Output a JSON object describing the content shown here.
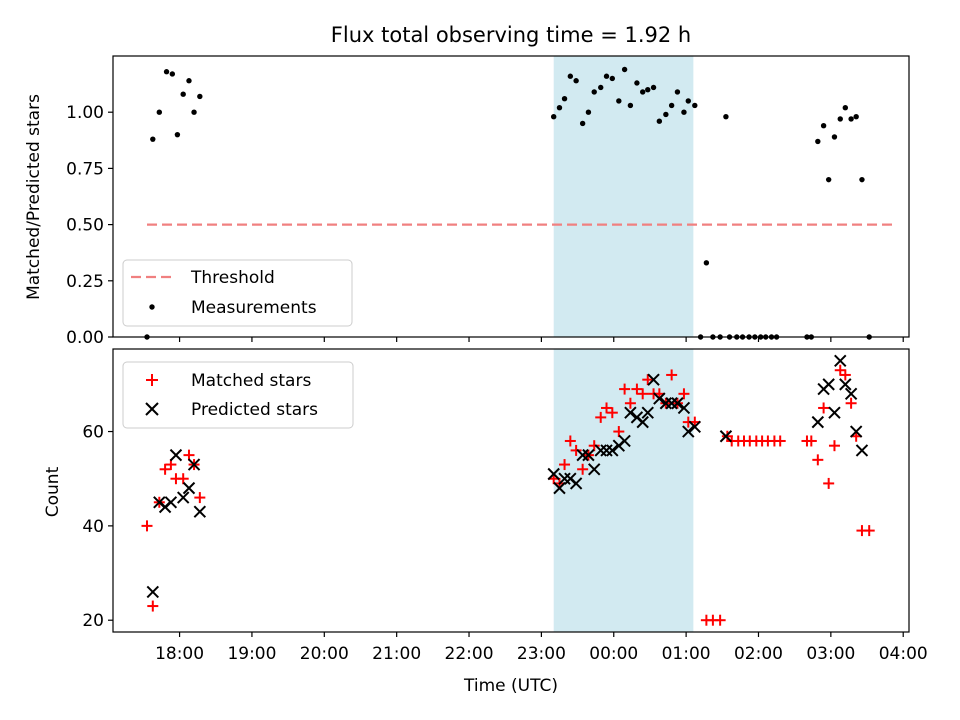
{
  "title": "Flux total observing time = 1.92 h",
  "colors": {
    "threshold": "#f08080",
    "measurements": "#000000",
    "matched": "#ff0000",
    "predicted": "#000000",
    "shade": "#add8e6"
  },
  "chart_data": [
    {
      "type": "scatter",
      "panel": "top",
      "ylabel": "Matched/Predicted stars",
      "xlabel": "",
      "ylim": [
        0.0,
        1.25
      ],
      "yticks": [
        0.0,
        0.25,
        0.5,
        0.75,
        1.0
      ],
      "ytick_labels": [
        "0.00",
        "0.25",
        "0.50",
        "0.75",
        "1.00"
      ],
      "xlim_hours": [
        17.08,
        28.08
      ],
      "shaded_span_hours": [
        23.17,
        25.1
      ],
      "legend_position": "lower-left",
      "threshold": {
        "name": "Threshold",
        "value": 0.5,
        "x_range_hours": [
          17.55,
          27.9
        ],
        "style": "dashed"
      },
      "series": [
        {
          "name": "Measurements",
          "marker": "dot",
          "points": [
            [
              17.55,
              0.0
            ],
            [
              17.63,
              0.88
            ],
            [
              17.72,
              1.0
            ],
            [
              17.82,
              1.18
            ],
            [
              17.9,
              1.17
            ],
            [
              17.97,
              0.9
            ],
            [
              18.05,
              1.08
            ],
            [
              18.13,
              1.14
            ],
            [
              18.2,
              1.0
            ],
            [
              18.28,
              1.07
            ],
            [
              23.17,
              0.98
            ],
            [
              23.25,
              1.02
            ],
            [
              23.32,
              1.06
            ],
            [
              23.4,
              1.16
            ],
            [
              23.48,
              1.14
            ],
            [
              23.57,
              0.95
            ],
            [
              23.65,
              1.0
            ],
            [
              23.73,
              1.09
            ],
            [
              23.82,
              1.11
            ],
            [
              23.9,
              1.16
            ],
            [
              23.98,
              1.15
            ],
            [
              24.07,
              1.05
            ],
            [
              24.15,
              1.19
            ],
            [
              24.23,
              1.03
            ],
            [
              24.32,
              1.13
            ],
            [
              24.4,
              1.09
            ],
            [
              24.47,
              1.1
            ],
            [
              24.55,
              1.11
            ],
            [
              24.63,
              0.96
            ],
            [
              24.72,
              0.99
            ],
            [
              24.8,
              1.03
            ],
            [
              24.88,
              1.09
            ],
            [
              24.97,
              1.0
            ],
            [
              25.03,
              1.05
            ],
            [
              25.12,
              1.03
            ],
            [
              25.2,
              0.0
            ],
            [
              25.28,
              0.33
            ],
            [
              25.37,
              0.0
            ],
            [
              25.47,
              0.0
            ],
            [
              25.55,
              0.98
            ],
            [
              25.6,
              0.0
            ],
            [
              25.7,
              0.0
            ],
            [
              25.78,
              0.0
            ],
            [
              25.87,
              0.0
            ],
            [
              25.95,
              0.0
            ],
            [
              26.03,
              0.0
            ],
            [
              26.1,
              0.0
            ],
            [
              26.18,
              0.0
            ],
            [
              26.25,
              0.0
            ],
            [
              26.67,
              0.0
            ],
            [
              26.73,
              0.0
            ],
            [
              26.82,
              0.87
            ],
            [
              26.9,
              0.94
            ],
            [
              26.97,
              0.7
            ],
            [
              27.05,
              0.89
            ],
            [
              27.13,
              0.97
            ],
            [
              27.2,
              1.02
            ],
            [
              27.28,
              0.97
            ],
            [
              27.35,
              0.98
            ],
            [
              27.43,
              0.7
            ],
            [
              27.53,
              0.0
            ]
          ]
        }
      ]
    },
    {
      "type": "scatter",
      "panel": "bottom",
      "xlabel": "Time (UTC)",
      "ylabel": "Count",
      "ylim": [
        17.5,
        77.5
      ],
      "yticks": [
        20,
        40,
        60
      ],
      "ytick_labels": [
        "20",
        "40",
        "60"
      ],
      "xlim_hours": [
        17.08,
        28.08
      ],
      "xticks_hours": [
        18,
        19,
        20,
        21,
        22,
        23,
        24,
        25,
        26,
        27,
        28
      ],
      "xtick_labels": [
        "18:00",
        "19:00",
        "20:00",
        "21:00",
        "22:00",
        "23:00",
        "00:00",
        "01:00",
        "02:00",
        "03:00",
        "04:00"
      ],
      "shaded_span_hours": [
        23.17,
        25.1
      ],
      "legend_position": "upper-left",
      "series": [
        {
          "name": "Matched stars",
          "marker": "plus",
          "points": [
            [
              17.55,
              40
            ],
            [
              17.63,
              23
            ],
            [
              17.72,
              45
            ],
            [
              17.8,
              52
            ],
            [
              17.88,
              53
            ],
            [
              17.95,
              50
            ],
            [
              18.05,
              50
            ],
            [
              18.13,
              55
            ],
            [
              18.2,
              53
            ],
            [
              18.28,
              46
            ],
            [
              23.17,
              50
            ],
            [
              23.25,
              49
            ],
            [
              23.32,
              53
            ],
            [
              23.4,
              58
            ],
            [
              23.48,
              56
            ],
            [
              23.57,
              52
            ],
            [
              23.65,
              55
            ],
            [
              23.73,
              57
            ],
            [
              23.82,
              63
            ],
            [
              23.9,
              65
            ],
            [
              23.98,
              64
            ],
            [
              24.07,
              60
            ],
            [
              24.15,
              69
            ],
            [
              24.23,
              66
            ],
            [
              24.32,
              69
            ],
            [
              24.4,
              68
            ],
            [
              24.47,
              71
            ],
            [
              24.55,
              68
            ],
            [
              24.63,
              68
            ],
            [
              24.72,
              66
            ],
            [
              24.8,
              72
            ],
            [
              24.88,
              66
            ],
            [
              24.97,
              68
            ],
            [
              25.03,
              62
            ],
            [
              25.12,
              62
            ],
            [
              25.28,
              20
            ],
            [
              25.37,
              20
            ],
            [
              25.47,
              20
            ],
            [
              25.57,
              59
            ],
            [
              25.63,
              58
            ],
            [
              25.72,
              58
            ],
            [
              25.8,
              58
            ],
            [
              25.88,
              58
            ],
            [
              25.97,
              58
            ],
            [
              26.05,
              58
            ],
            [
              26.13,
              58
            ],
            [
              26.22,
              58
            ],
            [
              26.3,
              58
            ],
            [
              26.67,
              58
            ],
            [
              26.73,
              58
            ],
            [
              26.82,
              54
            ],
            [
              26.9,
              65
            ],
            [
              26.97,
              49
            ],
            [
              27.05,
              57
            ],
            [
              27.13,
              73
            ],
            [
              27.2,
              72
            ],
            [
              27.28,
              66
            ],
            [
              27.35,
              59
            ],
            [
              27.43,
              39
            ],
            [
              27.53,
              39
            ]
          ]
        },
        {
          "name": "Predicted stars",
          "marker": "x",
          "points": [
            [
              17.63,
              26
            ],
            [
              17.72,
              45
            ],
            [
              17.8,
              44
            ],
            [
              17.88,
              45
            ],
            [
              17.95,
              55
            ],
            [
              18.05,
              46
            ],
            [
              18.13,
              48
            ],
            [
              18.2,
              53
            ],
            [
              18.28,
              43
            ],
            [
              23.17,
              51
            ],
            [
              23.25,
              48
            ],
            [
              23.32,
              50
            ],
            [
              23.4,
              50
            ],
            [
              23.48,
              49
            ],
            [
              23.57,
              55
            ],
            [
              23.65,
              55
            ],
            [
              23.73,
              52
            ],
            [
              23.82,
              56
            ],
            [
              23.9,
              56
            ],
            [
              23.98,
              56
            ],
            [
              24.07,
              57
            ],
            [
              24.15,
              58
            ],
            [
              24.23,
              64
            ],
            [
              24.32,
              63
            ],
            [
              24.4,
              62
            ],
            [
              24.47,
              64
            ],
            [
              24.55,
              71
            ],
            [
              24.63,
              67
            ],
            [
              24.72,
              66
            ],
            [
              24.8,
              66
            ],
            [
              24.88,
              66
            ],
            [
              24.97,
              65
            ],
            [
              25.03,
              60
            ],
            [
              25.12,
              61
            ],
            [
              25.55,
              59
            ],
            [
              26.82,
              62
            ],
            [
              26.9,
              69
            ],
            [
              26.97,
              70
            ],
            [
              27.05,
              64
            ],
            [
              27.13,
              75
            ],
            [
              27.2,
              70
            ],
            [
              27.28,
              68
            ],
            [
              27.35,
              60
            ],
            [
              27.43,
              56
            ]
          ]
        }
      ]
    }
  ]
}
